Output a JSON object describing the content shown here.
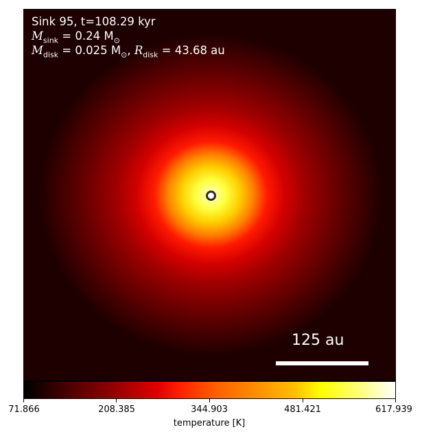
{
  "annotations": {
    "line1": "Sink 95, t=108.29 kyr",
    "msink_sym": "M",
    "msink_sub": "sink",
    "msink_val": " = 0.24 M",
    "msink_unit_sub": "⊙",
    "mdisk_sym": "M",
    "mdisk_sub": "disk",
    "mdisk_val": " = 0.025 M",
    "mdisk_unit_sub": "⊙",
    "rdisk_sep": ", ",
    "rdisk_sym": "R",
    "rdisk_sub": "disk",
    "rdisk_val": " = 43.68 au"
  },
  "scale_bar": {
    "label": "125 au"
  },
  "colorbar": {
    "label": "temperature [K]",
    "ticks": [
      "71.866",
      "208.385",
      "344.903",
      "481.421",
      "617.939"
    ],
    "colormap": "hot"
  }
}
